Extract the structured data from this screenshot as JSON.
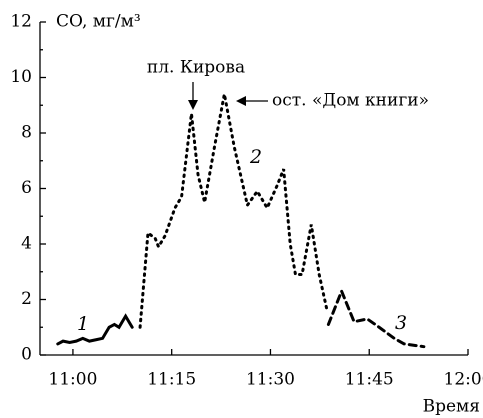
{
  "chart_data": {
    "type": "line",
    "y_label": "CO, мг/м³",
    "x_label": "Время",
    "annotations": [
      "пл. Кирова",
      "ост. «Дом книги»"
    ],
    "xlim": [
      655,
      720
    ],
    "xticks": [
      {
        "value": 660,
        "label": "11:00"
      },
      {
        "value": 675,
        "label": "11:15"
      },
      {
        "value": 690,
        "label": "11:30"
      },
      {
        "value": 705,
        "label": "11:45"
      },
      {
        "value": 720,
        "label": "12:00"
      }
    ],
    "ylim": [
      0,
      12
    ],
    "yticks": [
      0,
      2,
      4,
      6,
      8,
      10,
      12
    ],
    "series": [
      {
        "name": "1",
        "color": "#000000",
        "style": "solid",
        "x": [
          657.7,
          658.5,
          659.5,
          660.5,
          661.5,
          662.5,
          663.5,
          664.5,
          665.5,
          666.3,
          667,
          668,
          669
        ],
        "values": [
          0.4,
          0.5,
          0.45,
          0.5,
          0.6,
          0.5,
          0.55,
          0.6,
          1.0,
          1.1,
          1.0,
          1.4,
          1.0
        ]
      },
      {
        "name": "2",
        "color": "#000000",
        "style": "dotted",
        "x": [
          670.2,
          671.4,
          672.5,
          673,
          674,
          675.5,
          676.5,
          678,
          679,
          680,
          681.5,
          683,
          684.5,
          686.5,
          688,
          689.5,
          691,
          692,
          693,
          693.8,
          694.8,
          696.2,
          697.4,
          698.6
        ],
        "values": [
          1.0,
          4.4,
          4.2,
          3.9,
          4.3,
          5.3,
          5.7,
          8.7,
          6.5,
          5.5,
          7.5,
          9.4,
          7.5,
          5.4,
          5.9,
          5.3,
          6.1,
          6.7,
          4.0,
          2.9,
          2.9,
          4.7,
          2.9,
          1.6
        ]
      },
      {
        "name": "3",
        "color": "#000000",
        "style": "dashed",
        "x": [
          698.8,
          700.8,
          702.7,
          704.7,
          706.5,
          708.8,
          710.3,
          713.3
        ],
        "values": [
          1.1,
          2.3,
          1.2,
          1.3,
          1.0,
          0.6,
          0.4,
          0.3
        ]
      }
    ]
  }
}
